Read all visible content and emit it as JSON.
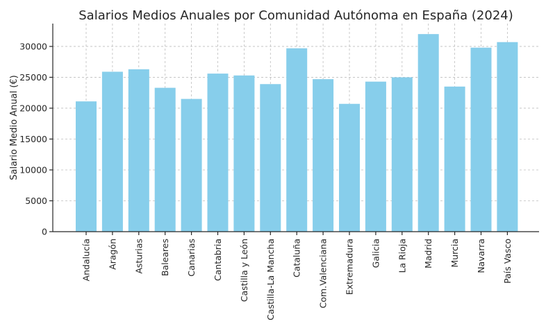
{
  "chart_data": {
    "type": "bar",
    "title": "Salarios Medios Anuales por Comunidad Autónoma en España (2024)",
    "xlabel": "",
    "ylabel": "Salario Medio Anual (€)",
    "ylim": [
      0,
      33700
    ],
    "yticks": [
      0,
      5000,
      10000,
      15000,
      20000,
      25000,
      30000
    ],
    "grid": true,
    "bar_color": "#87ceeb",
    "categories": [
      "Andalucía",
      "Aragón",
      "Asturias",
      "Baleares",
      "Canarias",
      "Cantabria",
      "Castilla y León",
      "Castilla-La Mancha",
      "Cataluña",
      "Com.Valenciana",
      "Extremadura",
      "Galicia",
      "La Rioja",
      "Madrid",
      "Murcia",
      "Navarra",
      "País Vasco"
    ],
    "values": [
      21100,
      25900,
      26300,
      23300,
      21500,
      25600,
      25300,
      23900,
      29700,
      24700,
      20700,
      24300,
      25000,
      32000,
      23500,
      29800,
      30700
    ]
  }
}
